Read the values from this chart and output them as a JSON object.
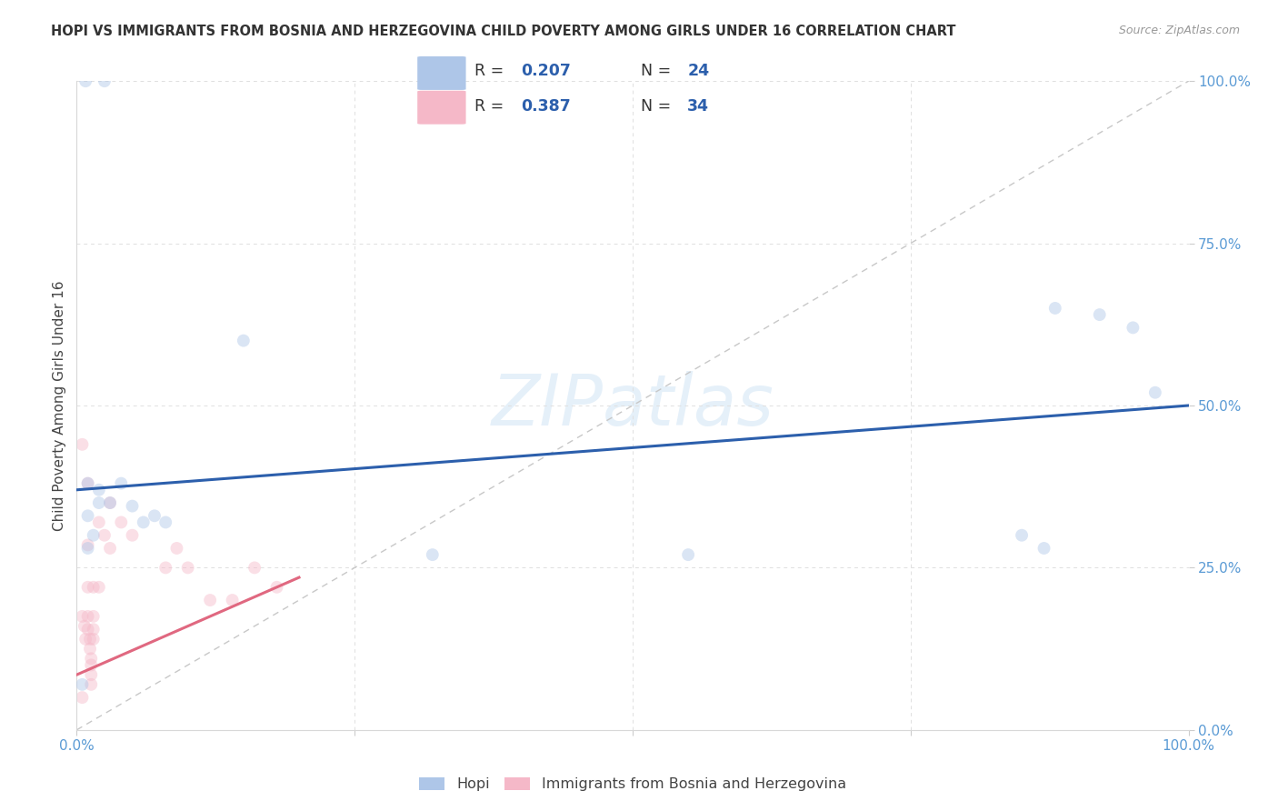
{
  "title": "HOPI VS IMMIGRANTS FROM BOSNIA AND HERZEGOVINA CHILD POVERTY AMONG GIRLS UNDER 16 CORRELATION CHART",
  "source": "Source: ZipAtlas.com",
  "ylabel": "Child Poverty Among Girls Under 16",
  "watermark": "ZIPatlas",
  "hopi_points": [
    [
      0.008,
      1.0
    ],
    [
      0.025,
      1.0
    ],
    [
      0.01,
      0.38
    ],
    [
      0.02,
      0.37
    ],
    [
      0.01,
      0.33
    ],
    [
      0.02,
      0.35
    ],
    [
      0.03,
      0.35
    ],
    [
      0.04,
      0.38
    ],
    [
      0.05,
      0.345
    ],
    [
      0.07,
      0.33
    ],
    [
      0.08,
      0.32
    ],
    [
      0.15,
      0.6
    ],
    [
      0.32,
      0.27
    ],
    [
      0.55,
      0.27
    ],
    [
      0.85,
      0.3
    ],
    [
      0.87,
      0.28
    ],
    [
      0.88,
      0.65
    ],
    [
      0.92,
      0.64
    ],
    [
      0.95,
      0.62
    ],
    [
      0.97,
      0.52
    ],
    [
      0.005,
      0.07
    ],
    [
      0.01,
      0.28
    ],
    [
      0.015,
      0.3
    ],
    [
      0.06,
      0.32
    ]
  ],
  "bosnia_points": [
    [
      0.005,
      0.44
    ],
    [
      0.005,
      0.175
    ],
    [
      0.007,
      0.16
    ],
    [
      0.008,
      0.14
    ],
    [
      0.01,
      0.38
    ],
    [
      0.01,
      0.285
    ],
    [
      0.01,
      0.22
    ],
    [
      0.01,
      0.175
    ],
    [
      0.01,
      0.155
    ],
    [
      0.012,
      0.14
    ],
    [
      0.012,
      0.125
    ],
    [
      0.013,
      0.11
    ],
    [
      0.013,
      0.1
    ],
    [
      0.013,
      0.085
    ],
    [
      0.013,
      0.07
    ],
    [
      0.015,
      0.22
    ],
    [
      0.015,
      0.175
    ],
    [
      0.015,
      0.155
    ],
    [
      0.015,
      0.14
    ],
    [
      0.02,
      0.32
    ],
    [
      0.02,
      0.22
    ],
    [
      0.025,
      0.3
    ],
    [
      0.03,
      0.35
    ],
    [
      0.03,
      0.28
    ],
    [
      0.04,
      0.32
    ],
    [
      0.05,
      0.3
    ],
    [
      0.005,
      0.05
    ],
    [
      0.08,
      0.25
    ],
    [
      0.09,
      0.28
    ],
    [
      0.1,
      0.25
    ],
    [
      0.12,
      0.2
    ],
    [
      0.14,
      0.2
    ],
    [
      0.16,
      0.25
    ],
    [
      0.18,
      0.22
    ]
  ],
  "hopi_color": "#aec6e8",
  "bosnia_color": "#f5b8c8",
  "hopi_line_color": "#2c5fac",
  "bosnia_line_color": "#e06880",
  "diagonal_color": "#c8c8c8",
  "hopi_R": 0.207,
  "hopi_N": 24,
  "bosnia_R": 0.387,
  "bosnia_N": 34,
  "hopi_line_x": [
    0,
    1.0
  ],
  "hopi_line_y": [
    0.37,
    0.5
  ],
  "bosnia_line_x": [
    0,
    0.2
  ],
  "bosnia_line_y": [
    0.085,
    0.235
  ],
  "xlim": [
    0,
    1
  ],
  "ylim": [
    0,
    1
  ],
  "xticks": [
    0,
    0.25,
    0.5,
    0.75,
    1.0
  ],
  "yticks": [
    0,
    0.25,
    0.5,
    0.75,
    1.0
  ],
  "xticklabels_edge": [
    "0.0%",
    "100.0%"
  ],
  "yticklabels": [
    "0.0%",
    "25.0%",
    "50.0%",
    "75.0%",
    "100.0%"
  ],
  "legend_hopi_label": "Hopi",
  "legend_bosnia_label": "Immigrants from Bosnia and Herzegovina",
  "background_color": "#ffffff",
  "grid_color": "#e0e0e0",
  "marker_size": 100,
  "marker_alpha": 0.45,
  "tick_color": "#5b9bd5"
}
